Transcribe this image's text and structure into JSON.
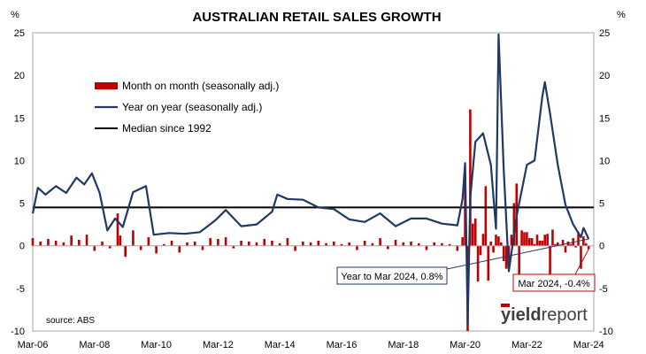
{
  "chart_data": {
    "type": "bar+line",
    "title": "AUSTRALIAN RETAIL SALES GROWTH",
    "left_unit": "%",
    "right_unit": "%",
    "ylim": [
      -10,
      25
    ],
    "y_ticks": [
      "25",
      "20",
      "15",
      "10",
      "5",
      "0",
      "-5",
      "-10"
    ],
    "x_ticks": [
      "Mar-06",
      "Mar-08",
      "Mar-10",
      "Mar-12",
      "Mar-14",
      "Mar-16",
      "Mar-18",
      "Mar-20",
      "Mar-22",
      "Mar-24"
    ],
    "x_range": [
      "2006-03",
      "2024-03"
    ],
    "legend": {
      "mom": "Month on month (seasonally adj.)",
      "yoy": "Year on year (seasonally adj.)",
      "median": "Median since 1992"
    },
    "median_value": 4.5,
    "source": "source: ABS",
    "logo": {
      "part1": "yield",
      "part2": "report"
    },
    "annotations": {
      "yoy_latest": "Year to Mar 2024, 0.8%",
      "mom_latest": "Mar 2024, -0.4%"
    },
    "yoy_series": {
      "name": "Year on year (seasonally adj.)",
      "points": [
        [
          "2006-03",
          3.8
        ],
        [
          "2006-05",
          6.8
        ],
        [
          "2006-08",
          6.0
        ],
        [
          "2006-12",
          7.0
        ],
        [
          "2007-04",
          6.2
        ],
        [
          "2007-08",
          8.0
        ],
        [
          "2007-11",
          7.2
        ],
        [
          "2008-02",
          8.5
        ],
        [
          "2008-05",
          6.2
        ],
        [
          "2008-08",
          1.8
        ],
        [
          "2008-11",
          3.2
        ],
        [
          "2009-02",
          2.2
        ],
        [
          "2009-06",
          6.3
        ],
        [
          "2009-11",
          7.0
        ],
        [
          "2010-02",
          1.3
        ],
        [
          "2010-08",
          1.5
        ],
        [
          "2011-02",
          1.4
        ],
        [
          "2011-08",
          1.6
        ],
        [
          "2012-02",
          3.0
        ],
        [
          "2012-06",
          4.2
        ],
        [
          "2012-12",
          2.3
        ],
        [
          "2013-06",
          2.5
        ],
        [
          "2013-12",
          4.0
        ],
        [
          "2014-02",
          6.0
        ],
        [
          "2014-06",
          5.5
        ],
        [
          "2014-12",
          5.4
        ],
        [
          "2015-06",
          4.5
        ],
        [
          "2015-12",
          4.3
        ],
        [
          "2016-06",
          3.1
        ],
        [
          "2016-12",
          2.8
        ],
        [
          "2017-06",
          3.8
        ],
        [
          "2017-12",
          2.3
        ],
        [
          "2018-06",
          3.2
        ],
        [
          "2018-12",
          3.2
        ],
        [
          "2019-06",
          2.6
        ],
        [
          "2019-12",
          2.4
        ],
        [
          "2020-02",
          5.5
        ],
        [
          "2020-03",
          9.7
        ],
        [
          "2020-04",
          -9.2
        ],
        [
          "2020-05",
          5.6
        ],
        [
          "2020-07",
          12.2
        ],
        [
          "2020-10",
          13.2
        ],
        [
          "2021-01",
          9.5
        ],
        [
          "2021-03",
          2.0
        ],
        [
          "2021-04",
          24.8
        ],
        [
          "2021-06",
          9.0
        ],
        [
          "2021-08",
          -3.0
        ],
        [
          "2021-11",
          3.5
        ],
        [
          "2021-12",
          5.0
        ],
        [
          "2022-03",
          9.5
        ],
        [
          "2022-06",
          10.0
        ],
        [
          "2022-09",
          17.5
        ],
        [
          "2022-10",
          19.2
        ],
        [
          "2022-12",
          15.5
        ],
        [
          "2023-03",
          9.5
        ],
        [
          "2023-06",
          4.8
        ],
        [
          "2023-09",
          2.5
        ],
        [
          "2023-12",
          1.0
        ],
        [
          "2024-01",
          2.1
        ],
        [
          "2024-03",
          0.8
        ]
      ]
    },
    "mom_series": {
      "name": "Month on month (seasonally adj.)",
      "points": [
        [
          "2006-03",
          0.9
        ],
        [
          "2006-06",
          0.5
        ],
        [
          "2006-09",
          0.8
        ],
        [
          "2006-12",
          0.6
        ],
        [
          "2007-03",
          0.4
        ],
        [
          "2007-06",
          1.2
        ],
        [
          "2007-09",
          0.7
        ],
        [
          "2007-12",
          1.3
        ],
        [
          "2008-03",
          -0.6
        ],
        [
          "2008-06",
          0.5
        ],
        [
          "2008-09",
          -0.3
        ],
        [
          "2008-12",
          3.8
        ],
        [
          "2009-01",
          1.2
        ],
        [
          "2009-03",
          -1.3
        ],
        [
          "2009-06",
          1.8
        ],
        [
          "2009-09",
          -0.5
        ],
        [
          "2009-12",
          1.0
        ],
        [
          "2010-03",
          -0.9
        ],
        [
          "2010-06",
          0.2
        ],
        [
          "2010-09",
          0.6
        ],
        [
          "2010-12",
          -0.8
        ],
        [
          "2011-03",
          0.4
        ],
        [
          "2011-06",
          0.5
        ],
        [
          "2011-09",
          -0.5
        ],
        [
          "2011-12",
          0.9
        ],
        [
          "2012-03",
          0.8
        ],
        [
          "2012-06",
          1.0
        ],
        [
          "2012-09",
          -0.3
        ],
        [
          "2012-12",
          0.6
        ],
        [
          "2013-03",
          0.5
        ],
        [
          "2013-06",
          0.4
        ],
        [
          "2013-09",
          0.8
        ],
        [
          "2013-12",
          0.6
        ],
        [
          "2014-03",
          0.3
        ],
        [
          "2014-06",
          0.9
        ],
        [
          "2014-09",
          -0.6
        ],
        [
          "2014-12",
          0.5
        ],
        [
          "2015-03",
          0.4
        ],
        [
          "2015-06",
          0.6
        ],
        [
          "2015-09",
          0.3
        ],
        [
          "2015-12",
          0.5
        ],
        [
          "2016-03",
          0.2
        ],
        [
          "2016-06",
          0.4
        ],
        [
          "2016-09",
          -0.5
        ],
        [
          "2016-12",
          0.6
        ],
        [
          "2017-03",
          0.3
        ],
        [
          "2017-06",
          0.9
        ],
        [
          "2017-09",
          -0.4
        ],
        [
          "2017-12",
          0.7
        ],
        [
          "2018-03",
          0.4
        ],
        [
          "2018-06",
          0.5
        ],
        [
          "2018-09",
          0.3
        ],
        [
          "2018-12",
          -0.5
        ],
        [
          "2019-03",
          0.4
        ],
        [
          "2019-06",
          0.3
        ],
        [
          "2019-09",
          0.2
        ],
        [
          "2019-12",
          -0.6
        ],
        [
          "2020-02",
          1.0
        ],
        [
          "2020-03",
          8.2
        ],
        [
          "2020-04",
          -10.0
        ],
        [
          "2020-05",
          16.0
        ],
        [
          "2020-06",
          2.6
        ],
        [
          "2020-07",
          3.2
        ],
        [
          "2020-08",
          -4.2
        ],
        [
          "2020-09",
          -1.1
        ],
        [
          "2020-10",
          1.4
        ],
        [
          "2020-11",
          7.0
        ],
        [
          "2020-12",
          -4.1
        ],
        [
          "2021-01",
          0.5
        ],
        [
          "2021-02",
          -0.8
        ],
        [
          "2021-03",
          1.3
        ],
        [
          "2021-04",
          1.1
        ],
        [
          "2021-05",
          0.4
        ],
        [
          "2021-06",
          -1.8
        ],
        [
          "2021-07",
          -2.7
        ],
        [
          "2021-08",
          -1.7
        ],
        [
          "2021-09",
          1.3
        ],
        [
          "2021-10",
          5.0
        ],
        [
          "2021-11",
          7.3
        ],
        [
          "2021-12",
          -4.4
        ],
        [
          "2022-01",
          1.8
        ],
        [
          "2022-02",
          1.6
        ],
        [
          "2022-03",
          1.6
        ],
        [
          "2022-04",
          0.9
        ],
        [
          "2022-05",
          0.9
        ],
        [
          "2022-06",
          0.2
        ],
        [
          "2022-07",
          1.3
        ],
        [
          "2022-08",
          0.6
        ],
        [
          "2022-09",
          0.6
        ],
        [
          "2022-10",
          1.3
        ],
        [
          "2022-11",
          1.4
        ],
        [
          "2022-12",
          -3.9
        ],
        [
          "2023-01",
          1.9
        ],
        [
          "2023-02",
          0.2
        ],
        [
          "2023-03",
          0.4
        ],
        [
          "2023-04",
          0.0
        ],
        [
          "2023-05",
          0.7
        ],
        [
          "2023-06",
          -0.8
        ],
        [
          "2023-07",
          0.5
        ],
        [
          "2023-08",
          0.2
        ],
        [
          "2023-09",
          0.9
        ],
        [
          "2023-10",
          -0.2
        ],
        [
          "2023-11",
          1.6
        ],
        [
          "2023-12",
          -2.7
        ],
        [
          "2024-01",
          1.1
        ],
        [
          "2024-02",
          0.3
        ],
        [
          "2024-03",
          -0.4
        ]
      ]
    },
    "colors": {
      "mom": "#c00000",
      "yoy": "#1f3864",
      "median": "#000000",
      "axis": "#a6a6a6",
      "logo_bar": "#c00000"
    }
  }
}
